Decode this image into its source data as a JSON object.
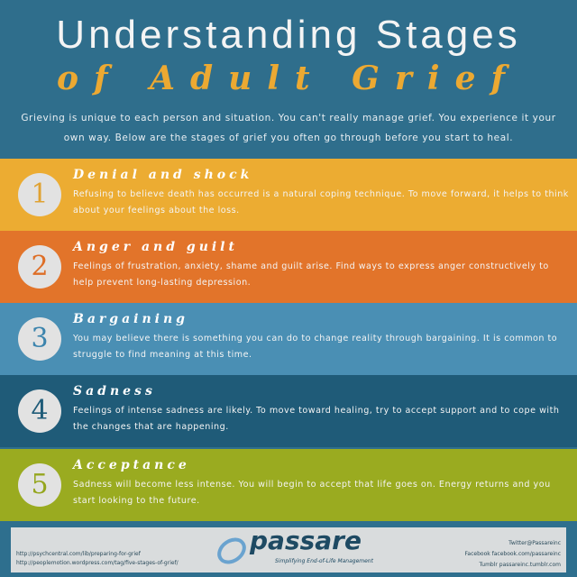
{
  "header": {
    "title_line1": "Understanding Stages",
    "title_line2": "of Adult Grief",
    "intro": "Grieving is unique to each person and situation.  You can't really manage grief.  You experience it your own way.  Below are the stages of grief you often go through before you start to heal."
  },
  "stages": [
    {
      "number": "1",
      "title": "Denial and shock",
      "text": "Refusing to believe death has occurred is a natural coping technique. To move forward, it helps to think about your feelings about the loss.",
      "color": "#ecac32",
      "num_color": "#e0a232"
    },
    {
      "number": "2",
      "title": "Anger and guilt",
      "text": "Feelings of frustration, anxiety, shame and guilt arise.  Find ways to express anger constructively to help prevent long-lasting depression.",
      "color": "#e2742a",
      "num_color": "#de6e26"
    },
    {
      "number": "3",
      "title": "Bargaining",
      "text": "You may believe there is something you can do to change reality through bargaining.  It is common to struggle to find meaning at this time.",
      "color": "#4a8fb4",
      "num_color": "#3c84ad"
    },
    {
      "number": "4",
      "title": "Sadness",
      "text": "Feelings of intense sadness are likely. To move toward healing, try to accept support and to cope with the changes that are happening.",
      "color": "#1f5b78",
      "num_color": "#1f5b78"
    },
    {
      "number": "5",
      "title": "Acceptance",
      "text": "Sadness will become less intense. You will begin to accept that life goes on.  Energy returns and you start looking to the future.",
      "color": "#9aab20",
      "num_color": "#95a61e"
    }
  ],
  "footer": {
    "links": [
      "http://psychcentral.com/lib/preparing-for-grief",
      "http://peoplemotion.wordpress.com/tag/five-stages-of-grief/"
    ],
    "logo": "passare",
    "tagline": "Simplifying End-of-Life Management",
    "social": [
      "Twitter@Passareinc",
      "Facebook facebook.com/passareinc",
      "Tumblr passareinc.tumblr.com"
    ]
  }
}
